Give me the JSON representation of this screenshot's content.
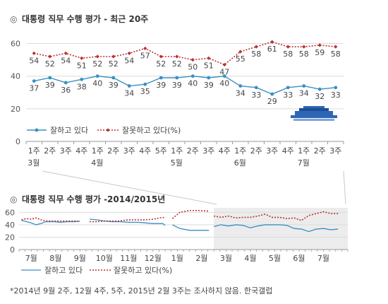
{
  "chart_data": [
    {
      "type": "line",
      "title": "대통령 직무 수행 평가 - 최근 20주",
      "x": [
        "1주",
        "2주",
        "3주",
        "4주",
        "1주",
        "2주",
        "3주",
        "4주",
        "5주",
        "1주",
        "2주",
        "3주",
        "4주",
        "1주",
        "2주",
        "3주",
        "4주",
        "1주",
        "2주",
        "3주"
      ],
      "months": [
        {
          "label": "3월",
          "start_index": 0
        },
        {
          "label": "4월",
          "start_index": 4
        },
        {
          "label": "5월",
          "start_index": 9
        },
        {
          "label": "6월",
          "start_index": 13
        },
        {
          "label": "7월",
          "start_index": 17
        }
      ],
      "series": [
        {
          "name": "잘하고 있다",
          "values": [
            37,
            39,
            36,
            38,
            40,
            39,
            34,
            35,
            39,
            39,
            40,
            39,
            40,
            34,
            33,
            29,
            33,
            34,
            32,
            33
          ],
          "color": "#3a8fc4",
          "style": "solid",
          "marker": "circle"
        },
        {
          "name": "잘못하고 있다(%)",
          "values": [
            54,
            52,
            54,
            51,
            52,
            52,
            54,
            57,
            52,
            52,
            50,
            51,
            47,
            55,
            58,
            61,
            58,
            58,
            59,
            58
          ],
          "color": "#b8322e",
          "style": "dotted",
          "marker": "diamond"
        }
      ],
      "yticks": [
        0,
        20,
        40,
        60
      ],
      "ylim": [
        0,
        65
      ],
      "grid": true,
      "legend": "bottom-left"
    },
    {
      "type": "line",
      "title": "대통령 직무 수행 평가 -2014/2015년",
      "month_labels": [
        "7월",
        "8월",
        "9월",
        "10월",
        "11월",
        "12월",
        "1월",
        "2월",
        "3월",
        "4월",
        "5월",
        "6월",
        "7월"
      ],
      "series": [
        {
          "name": "잘하고 있다",
          "color": "#3a8fc4",
          "style": "solid",
          "segments": [
            [
              [
                0.1,
                47
              ],
              [
                0.3,
                45
              ],
              [
                0.5,
                43
              ],
              [
                0.7,
                40
              ],
              [
                0.9,
                42
              ],
              [
                1.1,
                45
              ],
              [
                1.4,
                45
              ],
              [
                1.7,
                44
              ],
              [
                2.0,
                45
              ],
              [
                2.3,
                45
              ],
              [
                2.5,
                46
              ]
            ],
            [
              [
                2.9,
                49
              ],
              [
                3.2,
                48
              ],
              [
                3.5,
                46
              ],
              [
                3.8,
                45
              ],
              [
                4.1,
                45
              ],
              [
                4.5,
                44
              ],
              [
                4.9,
                44
              ],
              [
                5.2,
                43
              ],
              [
                5.5,
                42
              ],
              [
                5.9,
                42
              ],
              [
                6.0,
                39
              ]
            ],
            [
              [
                6.3,
                40
              ],
              [
                6.6,
                34
              ],
              [
                7.0,
                31
              ],
              [
                7.4,
                31
              ],
              [
                7.8,
                31
              ]
            ],
            [
              [
                8.0,
                37
              ],
              [
                8.3,
                40
              ],
              [
                8.6,
                38
              ],
              [
                8.9,
                40
              ],
              [
                9.2,
                39
              ],
              [
                9.5,
                35
              ],
              [
                9.8,
                38
              ],
              [
                10.1,
                40
              ],
              [
                10.4,
                40
              ],
              [
                10.7,
                40
              ],
              [
                11.0,
                39
              ],
              [
                11.3,
                34
              ],
              [
                11.6,
                33
              ],
              [
                11.9,
                29
              ],
              [
                12.2,
                33
              ],
              [
                12.5,
                34
              ],
              [
                12.8,
                32
              ],
              [
                13.1,
                33
              ]
            ]
          ]
        },
        {
          "name": "잘못하고 있다(%)",
          "color": "#b8322e",
          "style": "dotted",
          "segments": [
            [
              [
                0.1,
                48
              ],
              [
                0.3,
                50
              ],
              [
                0.5,
                49
              ],
              [
                0.7,
                51
              ],
              [
                0.9,
                48
              ],
              [
                1.1,
                46
              ],
              [
                1.4,
                46
              ],
              [
                1.7,
                46
              ],
              [
                2.0,
                46
              ],
              [
                2.3,
                46
              ],
              [
                2.5,
                45
              ]
            ],
            [
              [
                2.9,
                45
              ],
              [
                3.2,
                45
              ],
              [
                3.5,
                46
              ],
              [
                3.8,
                46
              ],
              [
                4.1,
                46
              ],
              [
                4.5,
                48
              ],
              [
                4.9,
                48
              ],
              [
                5.2,
                48
              ],
              [
                5.5,
                49
              ],
              [
                5.9,
                52
              ],
              [
                6.0,
                50
              ]
            ],
            [
              [
                6.3,
                50
              ],
              [
                6.6,
                60
              ],
              [
                7.0,
                63
              ],
              [
                7.4,
                63
              ],
              [
                7.8,
                62
              ]
            ],
            [
              [
                8.0,
                54
              ],
              [
                8.3,
                52
              ],
              [
                8.6,
                54
              ],
              [
                8.9,
                51
              ],
              [
                9.2,
                52
              ],
              [
                9.5,
                52
              ],
              [
                9.8,
                54
              ],
              [
                10.1,
                57
              ],
              [
                10.4,
                52
              ],
              [
                10.7,
                52
              ],
              [
                11.0,
                50
              ],
              [
                11.3,
                51
              ],
              [
                11.6,
                47
              ],
              [
                11.9,
                55
              ],
              [
                12.2,
                58
              ],
              [
                12.5,
                61
              ],
              [
                12.8,
                58
              ],
              [
                13.1,
                58
              ]
            ]
          ]
        }
      ],
      "yticks": [
        0,
        20,
        40,
        60
      ],
      "ylim": [
        0,
        65
      ],
      "highlight_range": [
        "3월",
        "7월"
      ],
      "grid": true,
      "legend": "bottom-left"
    }
  ],
  "footnote": "*2014년 9월 2주, 12월 4주, 5주, 2015년 2월 3주는 조사하지 않음. 한국갤럽"
}
